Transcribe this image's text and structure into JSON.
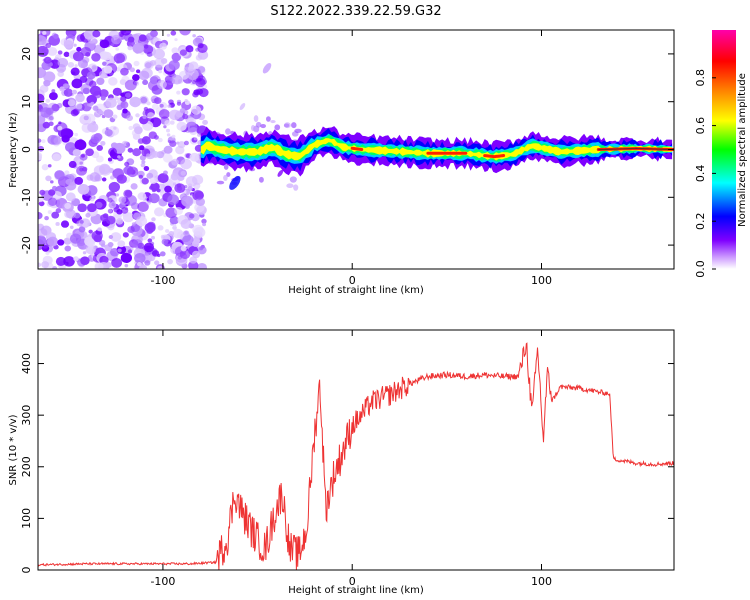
{
  "title": "S122.2022.339.22.59.G32",
  "chart_data": [
    {
      "type": "heatmap",
      "xlabel": "Height of straight line (km)",
      "ylabel": "Frequency (Hz)",
      "xlim": [
        -166,
        170
      ],
      "ylim": [
        -25,
        25
      ],
      "x_ticks": [
        -100,
        0,
        100
      ],
      "y_ticks": [
        -20,
        -10,
        0,
        10,
        20
      ],
      "colorbar": {
        "label": "Normalized spectral amplitude",
        "range": [
          0,
          1
        ],
        "ticks": [
          "0.0",
          "0.2",
          "0.4",
          "0.6",
          "0.8"
        ],
        "colors": [
          "#ffffff",
          "#7f00ff",
          "#0000ff",
          "#00ffff",
          "#00ff00",
          "#ffff00",
          "#ff7f00",
          "#ff0000",
          "#ff00ff"
        ]
      },
      "ridge_center_hz": [
        [
          -78,
          1.0
        ],
        [
          -70,
          0.0
        ],
        [
          -60,
          -0.5
        ],
        [
          -50,
          -0.5
        ],
        [
          -42,
          0.5
        ],
        [
          -35,
          -1.0
        ],
        [
          -28,
          -1.5
        ],
        [
          -20,
          1.0
        ],
        [
          -12,
          2.0
        ],
        [
          -5,
          0.5
        ],
        [
          5,
          0.0
        ],
        [
          20,
          -0.3
        ],
        [
          40,
          -0.8
        ],
        [
          60,
          -0.8
        ],
        [
          75,
          -1.5
        ],
        [
          85,
          -1.0
        ],
        [
          95,
          0.8
        ],
        [
          110,
          -0.5
        ],
        [
          130,
          0.0
        ],
        [
          150,
          0.2
        ],
        [
          170,
          0.0
        ]
      ],
      "noise_region_km": [
        -166,
        -78
      ]
    },
    {
      "type": "line",
      "xlabel": "Height of straight line (km)",
      "ylabel": "SNR (10 * v/v)",
      "xlim": [
        -166,
        170
      ],
      "ylim": [
        0,
        465
      ],
      "x_ticks": [
        -100,
        0,
        100
      ],
      "y_ticks": [
        0,
        100,
        200,
        300,
        400
      ],
      "color": "#ee3333",
      "points": [
        [
          -166,
          10
        ],
        [
          -140,
          12
        ],
        [
          -110,
          12
        ],
        [
          -85,
          12
        ],
        [
          -72,
          15
        ],
        [
          -66,
          60
        ],
        [
          -62,
          150
        ],
        [
          -58,
          110
        ],
        [
          -52,
          70
        ],
        [
          -46,
          40
        ],
        [
          -40,
          120
        ],
        [
          -37,
          150
        ],
        [
          -33,
          40
        ],
        [
          -28,
          30
        ],
        [
          -24,
          80
        ],
        [
          -20,
          260
        ],
        [
          -17,
          360
        ],
        [
          -14,
          120
        ],
        [
          -10,
          180
        ],
        [
          -5,
          230
        ],
        [
          0,
          280
        ],
        [
          5,
          300
        ],
        [
          10,
          325
        ],
        [
          20,
          340
        ],
        [
          30,
          360
        ],
        [
          40,
          375
        ],
        [
          50,
          378
        ],
        [
          60,
          375
        ],
        [
          70,
          378
        ],
        [
          80,
          375
        ],
        [
          88,
          375
        ],
        [
          92,
          440
        ],
        [
          95,
          300
        ],
        [
          98,
          430
        ],
        [
          101,
          250
        ],
        [
          103,
          380
        ],
        [
          106,
          330
        ],
        [
          110,
          355
        ],
        [
          120,
          352
        ],
        [
          130,
          345
        ],
        [
          136,
          342
        ],
        [
          138,
          215
        ],
        [
          150,
          207
        ],
        [
          160,
          205
        ],
        [
          170,
          207
        ]
      ]
    }
  ]
}
